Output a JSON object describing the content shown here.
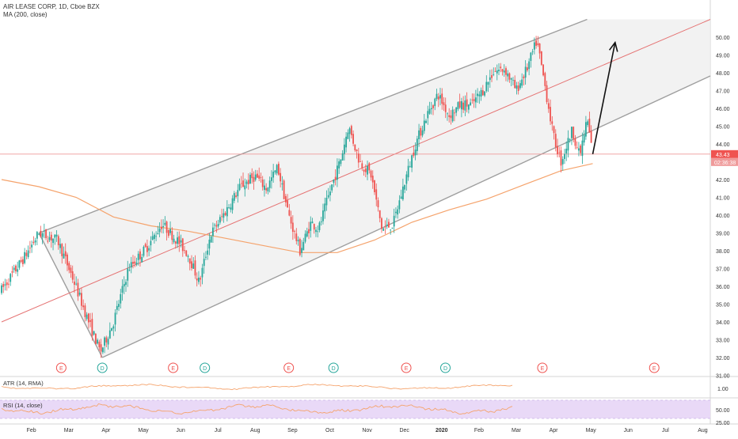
{
  "header": {
    "symbol_line": "AIR LEASE CORP, 1D, Cboe BZX",
    "ma_line": "MA (200, close)"
  },
  "panels": {
    "atr_label": "ATR (14, RMA)",
    "rsi_label": "RSI (14, close)"
  },
  "price_tag": "43.43",
  "countdown_tag": "02:36:38",
  "colors": {
    "up": "#26a69a",
    "down": "#ef5350",
    "ma": "#f5a36c",
    "channel_fill": "#eeeeee",
    "channel_line": "#9e9e9e",
    "mid_line": "#e57373",
    "rsi_band": "#e9d9f7",
    "price_tag_bg": "#ef5350",
    "countdown_bg": "#ef9a9a"
  },
  "chart_data": {
    "type": "candlestick",
    "title": "AIR LEASE CORP, 1D, Cboe BZX",
    "x_ticks": [
      "Feb",
      "Mar",
      "Apr",
      "May",
      "Jun",
      "Jul",
      "Aug",
      "Sep",
      "Oct",
      "Nov",
      "Dec",
      "2020",
      "Feb",
      "Mar",
      "Apr",
      "May",
      "Jun",
      "Jul",
      "Aug"
    ],
    "y_ticks": [
      "31.00",
      "32.00",
      "33.00",
      "34.00",
      "35.00",
      "36.00",
      "37.00",
      "38.00",
      "39.00",
      "40.00",
      "41.00",
      "42.00",
      "43.00",
      "44.00",
      "45.00",
      "46.00",
      "47.00",
      "48.00",
      "49.00",
      "50.00"
    ],
    "ylim": [
      31,
      51
    ],
    "last_price": 43.43,
    "atr_ticks": [
      "1.00"
    ],
    "rsi_ticks": [
      "50.00",
      "25.00"
    ],
    "event_markers": [
      {
        "label": "E",
        "month": 1.6
      },
      {
        "label": "D",
        "month": 2.7
      },
      {
        "label": "E",
        "month": 4.6
      },
      {
        "label": "D",
        "month": 5.45
      },
      {
        "label": "E",
        "month": 7.7
      },
      {
        "label": "D",
        "month": 8.9
      },
      {
        "label": "E",
        "month": 10.85
      },
      {
        "label": "D",
        "month": 11.9
      },
      {
        "label": "E",
        "month": 14.5
      },
      {
        "label": "E",
        "month": 17.5
      }
    ],
    "anchors": [
      {
        "m": 0.0,
        "p": 35.8
      },
      {
        "m": 0.6,
        "p": 37.6
      },
      {
        "m": 1.0,
        "p": 39.0
      },
      {
        "m": 1.5,
        "p": 38.6
      },
      {
        "m": 1.9,
        "p": 36.5
      },
      {
        "m": 2.3,
        "p": 34.2
      },
      {
        "m": 2.65,
        "p": 32.3
      },
      {
        "m": 3.0,
        "p": 34.0
      },
      {
        "m": 3.4,
        "p": 37.0
      },
      {
        "m": 3.9,
        "p": 38.2
      },
      {
        "m": 4.3,
        "p": 39.5
      },
      {
        "m": 4.7,
        "p": 38.6
      },
      {
        "m": 5.0,
        "p": 37.8
      },
      {
        "m": 5.3,
        "p": 36.2
      },
      {
        "m": 5.6,
        "p": 38.9
      },
      {
        "m": 6.0,
        "p": 40.2
      },
      {
        "m": 6.4,
        "p": 41.6
      },
      {
        "m": 6.8,
        "p": 42.2
      },
      {
        "m": 7.1,
        "p": 41.5
      },
      {
        "m": 7.4,
        "p": 42.7
      },
      {
        "m": 7.7,
        "p": 40.0
      },
      {
        "m": 8.0,
        "p": 38.0
      },
      {
        "m": 8.3,
        "p": 39.6
      },
      {
        "m": 8.5,
        "p": 39.2
      },
      {
        "m": 8.8,
        "p": 41.3
      },
      {
        "m": 9.1,
        "p": 43.2
      },
      {
        "m": 9.3,
        "p": 45.0
      },
      {
        "m": 9.6,
        "p": 43.0
      },
      {
        "m": 9.9,
        "p": 42.3
      },
      {
        "m": 10.2,
        "p": 39.2
      },
      {
        "m": 10.5,
        "p": 39.5
      },
      {
        "m": 10.8,
        "p": 41.8
      },
      {
        "m": 11.1,
        "p": 44.0
      },
      {
        "m": 11.4,
        "p": 45.6
      },
      {
        "m": 11.7,
        "p": 46.8
      },
      {
        "m": 12.0,
        "p": 45.6
      },
      {
        "m": 12.3,
        "p": 46.2
      },
      {
        "m": 12.6,
        "p": 46.2
      },
      {
        "m": 12.9,
        "p": 47.0
      },
      {
        "m": 13.2,
        "p": 48.1
      },
      {
        "m": 13.5,
        "p": 48.2
      },
      {
        "m": 13.8,
        "p": 47.0
      },
      {
        "m": 14.1,
        "p": 48.3
      },
      {
        "m": 14.35,
        "p": 49.8
      },
      {
        "m": 14.55,
        "p": 47.5
      },
      {
        "m": 14.8,
        "p": 44.4
      },
      {
        "m": 15.0,
        "p": 43.0
      },
      {
        "m": 15.3,
        "p": 44.8
      },
      {
        "m": 15.5,
        "p": 43.3
      },
      {
        "m": 15.7,
        "p": 45.4
      },
      {
        "m": 15.85,
        "p": 43.43
      }
    ],
    "ma_points": [
      {
        "m": 0.0,
        "p": 42.0
      },
      {
        "m": 1.0,
        "p": 41.6
      },
      {
        "m": 2.0,
        "p": 41.0
      },
      {
        "m": 3.0,
        "p": 39.9
      },
      {
        "m": 4.0,
        "p": 39.4
      },
      {
        "m": 5.0,
        "p": 39.1
      },
      {
        "m": 6.0,
        "p": 38.7
      },
      {
        "m": 7.0,
        "p": 38.3
      },
      {
        "m": 8.0,
        "p": 37.9
      },
      {
        "m": 9.0,
        "p": 37.9
      },
      {
        "m": 10.0,
        "p": 38.6
      },
      {
        "m": 11.0,
        "p": 39.6
      },
      {
        "m": 12.0,
        "p": 40.3
      },
      {
        "m": 13.0,
        "p": 40.9
      },
      {
        "m": 14.0,
        "p": 41.7
      },
      {
        "m": 15.0,
        "p": 42.5
      },
      {
        "m": 15.85,
        "p": 42.9
      }
    ],
    "channel": {
      "lower_start": {
        "m": 1.0,
        "p": 39.0
      },
      "lower_mid": {
        "m": 2.7,
        "p": 32.0
      },
      "lower_end": {
        "m": 20.0,
        "p": 47.8
      },
      "upper_start": {
        "m": 1.0,
        "p": 39.0
      },
      "upper_end": {
        "m": 15.7,
        "p": 51.0
      },
      "mid_start": {
        "m": 0.0,
        "p": 34.0
      },
      "mid_end": {
        "m": 20.0,
        "p": 51.0
      }
    },
    "arrow": {
      "from": {
        "m": 15.85,
        "p": 43.43
      },
      "to": {
        "m": 16.45,
        "p": 49.7
      }
    }
  }
}
